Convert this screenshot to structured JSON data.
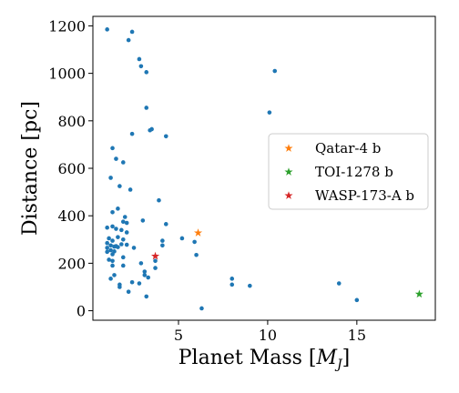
{
  "chart_data": {
    "type": "scatter",
    "xlabel": "Planet Mass [",
    "xlabel_sym": "M",
    "xlabel_sub": "J",
    "xlabel_end": "]",
    "ylabel": "Distance [pc]",
    "xlim": [
      0.2,
      19.4
    ],
    "ylim": [
      -40,
      1240
    ],
    "xticks": [
      5,
      10,
      15
    ],
    "yticks": [
      0,
      200,
      400,
      600,
      800,
      1000,
      1200
    ],
    "grid": false,
    "legend_position": "center-right",
    "series": [
      {
        "marker": "circle",
        "color": "#1f77b4",
        "points": [
          [
            1.0,
            1185
          ],
          [
            2.4,
            1175
          ],
          [
            2.2,
            1140
          ],
          [
            2.8,
            1060
          ],
          [
            2.9,
            1030
          ],
          [
            3.2,
            1005
          ],
          [
            10.4,
            1010
          ],
          [
            3.2,
            855
          ],
          [
            10.1,
            835
          ],
          [
            3.4,
            760
          ],
          [
            3.5,
            765
          ],
          [
            2.4,
            745
          ],
          [
            4.3,
            735
          ],
          [
            1.3,
            685
          ],
          [
            1.5,
            640
          ],
          [
            1.9,
            625
          ],
          [
            1.2,
            560
          ],
          [
            1.7,
            525
          ],
          [
            2.3,
            510
          ],
          [
            3.9,
            465
          ],
          [
            1.6,
            430
          ],
          [
            1.3,
            415
          ],
          [
            2.0,
            395
          ],
          [
            1.9,
            375
          ],
          [
            2.1,
            370
          ],
          [
            3.0,
            380
          ],
          [
            4.3,
            365
          ],
          [
            1.0,
            350
          ],
          [
            1.3,
            355
          ],
          [
            1.5,
            345
          ],
          [
            1.8,
            340
          ],
          [
            2.1,
            330
          ],
          [
            1.1,
            305
          ],
          [
            1.3,
            295
          ],
          [
            1.6,
            310
          ],
          [
            1.9,
            300
          ],
          [
            1.0,
            285
          ],
          [
            1.2,
            275
          ],
          [
            1.4,
            270
          ],
          [
            1.6,
            268
          ],
          [
            1.8,
            280
          ],
          [
            2.1,
            278
          ],
          [
            1.0,
            265
          ],
          [
            1.2,
            255
          ],
          [
            1.4,
            250
          ],
          [
            1.5,
            272
          ],
          [
            1.0,
            248
          ],
          [
            1.3,
            238
          ],
          [
            1.1,
            215
          ],
          [
            1.3,
            210
          ],
          [
            1.9,
            225
          ],
          [
            2.5,
            265
          ],
          [
            4.1,
            295
          ],
          [
            4.1,
            275
          ],
          [
            5.2,
            305
          ],
          [
            5.9,
            290
          ],
          [
            6.0,
            235
          ],
          [
            3.7,
            210
          ],
          [
            2.9,
            200
          ],
          [
            3.7,
            180
          ],
          [
            3.1,
            165
          ],
          [
            3.1,
            150
          ],
          [
            3.3,
            140
          ],
          [
            1.3,
            190
          ],
          [
            1.4,
            150
          ],
          [
            1.2,
            135
          ],
          [
            1.9,
            190
          ],
          [
            1.7,
            110
          ],
          [
            1.7,
            100
          ],
          [
            2.4,
            120
          ],
          [
            2.8,
            115
          ],
          [
            2.2,
            80
          ],
          [
            3.2,
            60
          ],
          [
            6.3,
            10
          ],
          [
            8.0,
            135
          ],
          [
            8.0,
            110
          ],
          [
            9.0,
            105
          ],
          [
            14.0,
            115
          ],
          [
            15.0,
            45
          ]
        ]
      },
      {
        "name": "Qatar-4 b",
        "marker": "star",
        "color": "#ff7f0e",
        "points": [
          [
            6.1,
            328
          ]
        ]
      },
      {
        "name": "TOI-1278 b",
        "marker": "star",
        "color": "#2ca02c",
        "points": [
          [
            18.5,
            70
          ]
        ]
      },
      {
        "name": "WASP-173-A b",
        "marker": "star",
        "color": "#d62728",
        "points": [
          [
            3.7,
            230
          ]
        ]
      }
    ]
  }
}
